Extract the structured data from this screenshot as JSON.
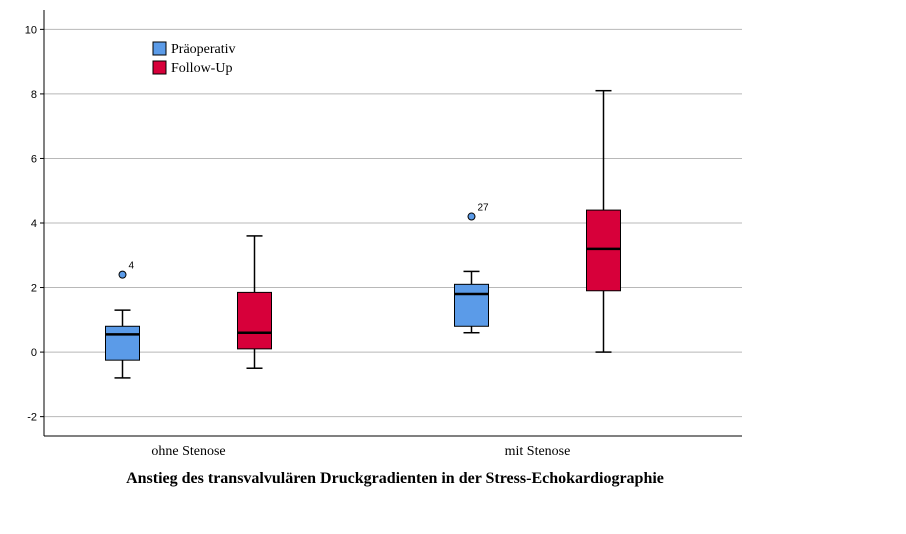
{
  "chart_data": {
    "type": "box",
    "title": "Anstieg des transvalvulären Druckgradienten in der Stress-Echokardiographie",
    "xlabel": "",
    "ylabel": "",
    "ylim": [
      -2.6,
      10.6
    ],
    "yticks": [
      -2,
      0,
      2,
      4,
      6,
      8,
      10
    ],
    "grid": "horizontal",
    "legend_position": "top-left",
    "categories": [
      "ohne Stenose",
      "mit Stenose"
    ],
    "series": [
      {
        "name": "Präoperativ",
        "color": "#5b9be8",
        "boxes": [
          {
            "min": -0.8,
            "q1": -0.25,
            "median": 0.55,
            "q3": 0.8,
            "max": 1.3,
            "outliers": [
              {
                "value": 2.4,
                "label": "4"
              }
            ]
          },
          {
            "min": 0.6,
            "q1": 0.8,
            "median": 1.8,
            "q3": 2.1,
            "max": 2.5,
            "outliers": [
              {
                "value": 4.2,
                "label": "27"
              }
            ]
          }
        ]
      },
      {
        "name": "Follow-Up",
        "color": "#d7003a",
        "boxes": [
          {
            "min": -0.5,
            "q1": 0.1,
            "median": 0.6,
            "q3": 1.85,
            "max": 3.6,
            "outliers": []
          },
          {
            "min": 0.0,
            "q1": 1.9,
            "median": 3.2,
            "q3": 4.4,
            "max": 8.1,
            "outliers": []
          }
        ]
      }
    ]
  }
}
